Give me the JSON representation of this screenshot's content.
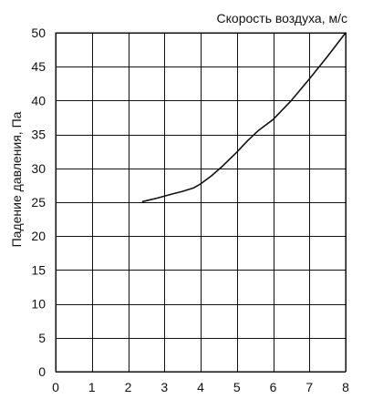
{
  "chart_data": {
    "type": "line",
    "xlabel": "Скорость воздуха, м/с",
    "ylabel": "Падение давления, Па",
    "xlim": [
      0,
      8
    ],
    "ylim": [
      0,
      50
    ],
    "x_ticks": [
      0,
      1,
      2,
      3,
      4,
      5,
      6,
      7,
      8
    ],
    "y_ticks": [
      0,
      5,
      10,
      15,
      20,
      25,
      30,
      35,
      40,
      45,
      50
    ],
    "grid": true,
    "series": [
      {
        "color": "#111111",
        "x": [
          2.4,
          2.8,
          3.2,
          3.5,
          3.8,
          4.0,
          4.3,
          4.6,
          5.0,
          5.3,
          5.6,
          6.0,
          6.5,
          7.0,
          7.5,
          8.0
        ],
        "y": [
          25.1,
          25.6,
          26.2,
          26.6,
          27.1,
          27.7,
          28.9,
          30.3,
          32.4,
          34.1,
          35.6,
          37.2,
          40.0,
          43.2,
          46.5,
          50.0
        ]
      }
    ]
  }
}
